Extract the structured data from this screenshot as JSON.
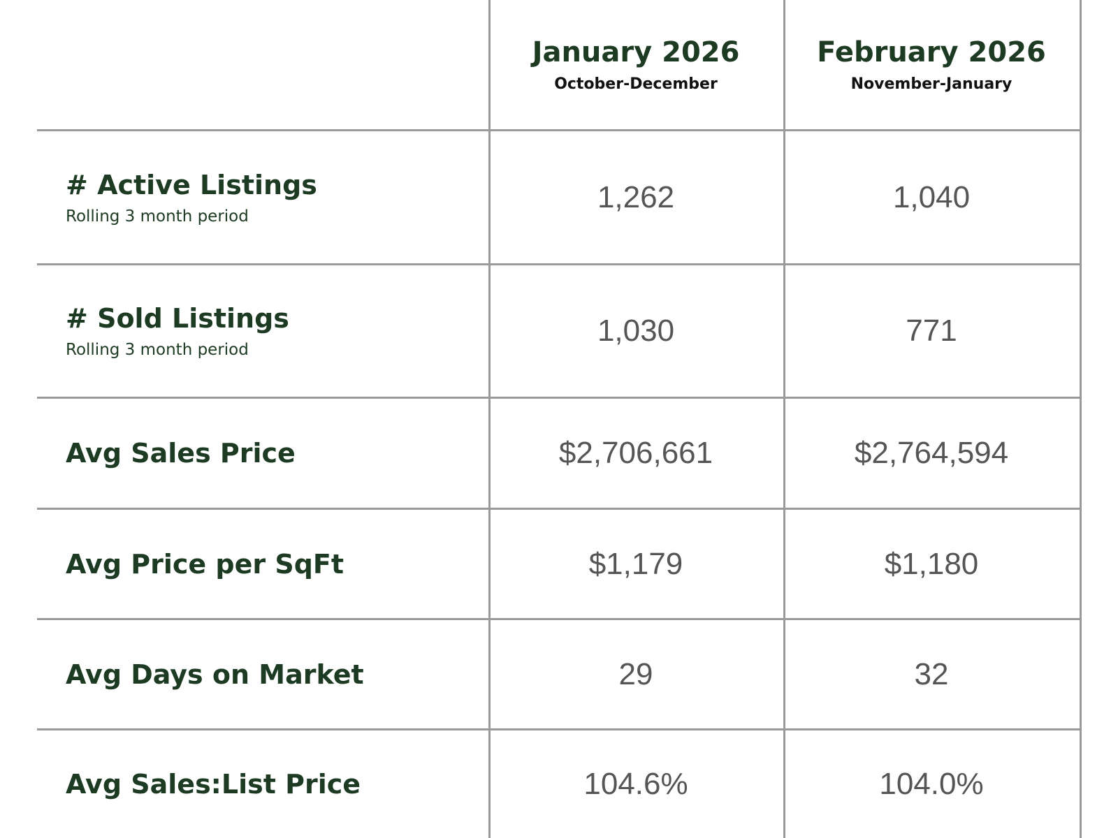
{
  "table": {
    "columns": [
      {
        "title": "January 2026",
        "subtitle": "October-December"
      },
      {
        "title": "February 2026",
        "subtitle": "November-January"
      }
    ],
    "rows": [
      {
        "label": "# Active Listings",
        "note": "Rolling 3 month period",
        "values": [
          "1,262",
          "1,040"
        ]
      },
      {
        "label": "# Sold Listings",
        "note": "Rolling 3 month period",
        "values": [
          "1,030",
          "771"
        ]
      },
      {
        "label": "Avg Sales Price",
        "values": [
          "$2,706,661",
          "$2,764,594"
        ]
      },
      {
        "label": "Avg Price per SqFt",
        "values": [
          "$1,179",
          "$1,180"
        ]
      },
      {
        "label": "Avg Days on Market",
        "values": [
          "29",
          "32"
        ]
      },
      {
        "label": "Avg Sales:List Price",
        "values": [
          "104.6%",
          "104.0%"
        ]
      }
    ]
  }
}
